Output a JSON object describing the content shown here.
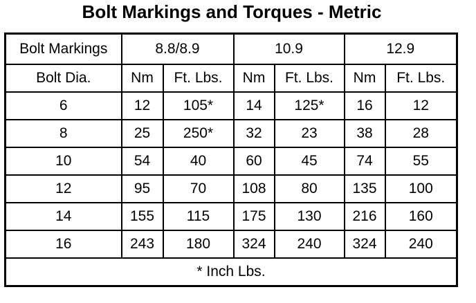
{
  "title": "Bolt Markings and Torques - Metric",
  "table": {
    "group_header": [
      "Bolt Markings",
      "8.8/8.9",
      "10.9",
      "12.9"
    ],
    "sub_header": [
      "Bolt Dia.",
      "Nm",
      "Ft. Lbs.",
      "Nm",
      "Ft. Lbs.",
      "Nm",
      "Ft. Lbs."
    ],
    "rows": [
      [
        "6",
        "12",
        "105*",
        "14",
        "125*",
        "16",
        "12"
      ],
      [
        "8",
        "25",
        "250*",
        "32",
        "23",
        "38",
        "28"
      ],
      [
        "10",
        "54",
        "40",
        "60",
        "45",
        "74",
        "55"
      ],
      [
        "12",
        "95",
        "70",
        "108",
        "80",
        "135",
        "100"
      ],
      [
        "14",
        "155",
        "115",
        "175",
        "130",
        "216",
        "160"
      ],
      [
        "16",
        "243",
        "180",
        "324",
        "240",
        "324",
        "240"
      ]
    ],
    "footnote": "* Inch Lbs."
  }
}
